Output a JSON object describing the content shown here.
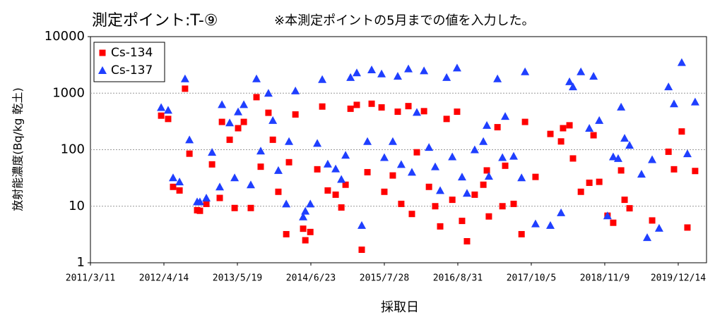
{
  "chart_data": {
    "type": "scatter",
    "title": "測定ポイント:T-⑨",
    "annotation": "※本測定ポイントの5月までの値を入力した。",
    "y_label": "放射能濃度(Bq/kg 乾土)",
    "x_label": "採取日",
    "log_y": true,
    "grid": true,
    "legend": "top-left",
    "xlim": [
      "2011/3/11",
      "2020/5/16"
    ],
    "xticks": [
      "2011/3/11",
      "2012/4/14",
      "2013/5/19",
      "2014/6/23",
      "2015/7/28",
      "2016/8/31",
      "2017/10/5",
      "2018/11/9",
      "2019/12/14"
    ],
    "ylim": [
      1,
      10000
    ],
    "yticks": [
      1,
      10,
      100,
      1000,
      10000
    ],
    "series": [
      {
        "name": "Cs-134",
        "color": "#ff0000",
        "marker": "square",
        "x": [
          "2012/3/30",
          "2012/5/7",
          "2012/6/3",
          "2012/7/8",
          "2012/8/7",
          "2012/8/31",
          "2012/10/12",
          "2012/10/27",
          "2012/12/1",
          "2013/1/1",
          "2013/2/12",
          "2013/2/24",
          "2013/4/7",
          "2013/5/4",
          "2013/5/23",
          "2013/6/23",
          "2013/7/31",
          "2013/8/31",
          "2013/9/23",
          "2013/11/4",
          "2013/11/28",
          "2013/12/28",
          "2014/2/9",
          "2014/2/24",
          "2014/3/31",
          "2014/5/12",
          "2014/5/24",
          "2014/6/20",
          "2014/7/28",
          "2014/8/24",
          "2014/9/23",
          "2014/11/5",
          "2014/12/6",
          "2014/12/29",
          "2015/1/25",
          "2015/2/28",
          "2015/3/27",
          "2015/4/27",
          "2015/5/20",
          "2015/7/13",
          "2015/7/28",
          "2015/9/12",
          "2015/10/9",
          "2015/10/28",
          "2015/12/6",
          "2015/12/25",
          "2016/1/21",
          "2016/2/29",
          "2016/3/27",
          "2016/4/30",
          "2016/5/27",
          "2016/7/1",
          "2016/8/1",
          "2016/8/27",
          "2016/9/23",
          "2016/10/20",
          "2016/12/1",
          "2017/1/17",
          "2017/2/5",
          "2017/2/16",
          "2017/4/4",
          "2017/5/1",
          "2017/5/16",
          "2017/7/1",
          "2017/8/13",
          "2017/9/1",
          "2017/10/28",
          "2018/1/17",
          "2018/3/16",
          "2018/3/27",
          "2018/5/1",
          "2018/5/20",
          "2018/7/2",
          "2018/8/17",
          "2018/9/9",
          "2018/10/10",
          "2018/11/24",
          "2018/12/25",
          "2019/2/6",
          "2019/2/25",
          "2019/3/24",
          "2019/7/25",
          "2019/10/22",
          "2019/11/21",
          "2020/1/2",
          "2020/2/2",
          "2020/3/15"
        ],
        "values": [
          400,
          350,
          22,
          19,
          1200,
          85,
          8.5,
          8.3,
          11,
          55,
          14,
          310,
          150,
          9.3,
          240,
          310,
          9.3,
          850,
          50,
          450,
          150,
          18,
          3.2,
          60,
          420,
          4,
          2.5,
          3.5,
          45,
          580,
          19,
          16,
          9.5,
          24,
          530,
          620,
          1.7,
          40,
          650,
          560,
          18,
          35,
          470,
          11,
          590,
          7.3,
          90,
          480,
          22,
          10,
          4.4,
          350,
          13,
          470,
          5.5,
          2.4,
          16,
          24,
          43,
          6.6,
          250,
          10,
          52,
          11,
          3.2,
          310,
          33,
          190,
          140,
          240,
          270,
          70,
          18,
          26,
          180,
          27,
          6.8,
          5.1,
          43,
          13,
          9.2,
          5.6,
          92,
          45,
          210,
          4.2,
          42
        ]
      },
      {
        "name": "Cs-137",
        "color": "#1f3fff",
        "marker": "triangle",
        "x": [
          "2012/3/30",
          "2012/5/7",
          "2012/6/3",
          "2012/7/8",
          "2012/8/7",
          "2012/8/31",
          "2012/10/12",
          "2012/10/27",
          "2012/12/1",
          "2013/1/1",
          "2013/2/12",
          "2013/2/24",
          "2013/4/7",
          "2013/5/4",
          "2013/5/23",
          "2013/6/23",
          "2013/7/31",
          "2013/8/31",
          "2013/9/23",
          "2013/11/4",
          "2013/11/28",
          "2013/12/28",
          "2014/2/9",
          "2014/2/24",
          "2014/3/31",
          "2014/5/12",
          "2014/5/24",
          "2014/6/20",
          "2014/7/28",
          "2014/8/24",
          "2014/9/23",
          "2014/11/5",
          "2014/12/6",
          "2014/12/29",
          "2015/1/25",
          "2015/2/28",
          "2015/3/27",
          "2015/4/27",
          "2015/5/20",
          "2015/7/13",
          "2015/7/28",
          "2015/9/12",
          "2015/10/9",
          "2015/10/28",
          "2015/12/6",
          "2015/12/25",
          "2016/1/21",
          "2016/2/29",
          "2016/3/27",
          "2016/4/30",
          "2016/5/27",
          "2016/7/1",
          "2016/8/1",
          "2016/8/27",
          "2016/9/23",
          "2016/10/20",
          "2016/12/1",
          "2017/1/17",
          "2017/2/5",
          "2017/2/16",
          "2017/4/4",
          "2017/5/1",
          "2017/5/16",
          "2017/7/1",
          "2017/8/13",
          "2017/9/1",
          "2017/10/28",
          "2018/1/17",
          "2018/3/16",
          "2018/5/1",
          "2018/5/20",
          "2018/7/2",
          "2018/8/17",
          "2018/9/9",
          "2018/10/10",
          "2018/11/24",
          "2018/12/25",
          "2019/1/21",
          "2019/2/6",
          "2019/2/25",
          "2019/3/24",
          "2019/5/28",
          "2019/6/28",
          "2019/7/25",
          "2019/9/1",
          "2019/10/22",
          "2019/11/21",
          "2020/1/2",
          "2020/2/2",
          "2020/3/15"
        ],
        "values": [
          560,
          500,
          32,
          27,
          1800,
          150,
          12,
          12,
          14,
          90,
          22,
          630,
          300,
          32,
          470,
          630,
          24,
          1800,
          95,
          1000,
          330,
          43,
          11,
          140,
          1100,
          6.5,
          8.2,
          11,
          130,
          1750,
          56,
          46,
          30,
          80,
          1900,
          2300,
          4.6,
          140,
          2600,
          2200,
          73,
          140,
          2000,
          55,
          2700,
          40,
          460,
          2500,
          110,
          50,
          19,
          1900,
          75,
          2800,
          33,
          17,
          100,
          140,
          270,
          34,
          1800,
          73,
          390,
          77,
          32,
          2400,
          4.9,
          4.6,
          7.7,
          1600,
          1300,
          2400,
          240,
          2000,
          330,
          6.8,
          75,
          70,
          570,
          160,
          120,
          37,
          2.8,
          67,
          4.1,
          1300,
          650,
          3500,
          85,
          700
        ]
      }
    ]
  }
}
